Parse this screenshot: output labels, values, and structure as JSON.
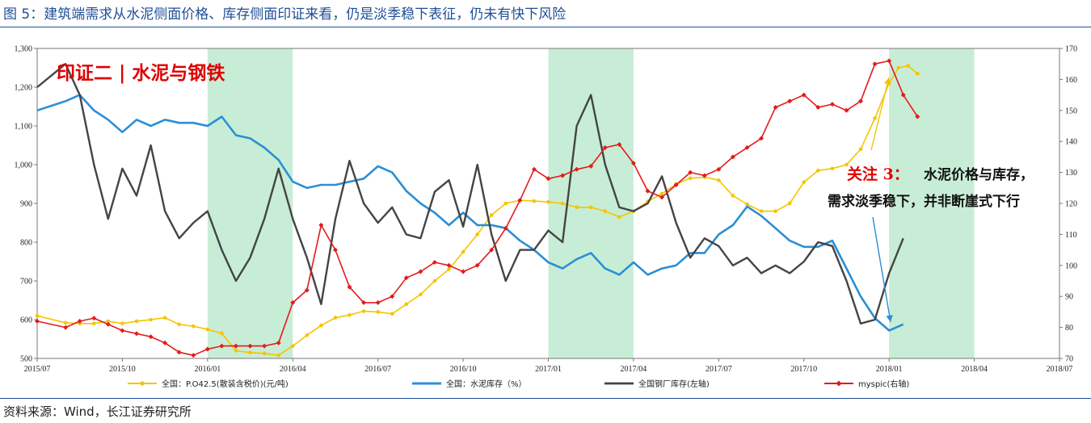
{
  "figure_title": "图 5：建筑端需求从水泥侧面价格、库存侧面印证来看，仍是淡季稳下表征，仍未有快下风险",
  "source": "资料来源：Wind，长江证券研究所",
  "annotations": {
    "top_left": "印证二 | 水泥与钢铁",
    "note_red": "关注 3：",
    "note_line1": "水泥价格与库存，",
    "note_line2": "需求淡季稳下，并非断崖式下行"
  },
  "colors": {
    "cement_price": "#f5c400",
    "cement_inventory": "#2a8fd6",
    "steel_inventory": "#444444",
    "myspic": "#e31b1b",
    "shade": "#c8edd6",
    "title": "#1f4e96"
  },
  "chart_data": {
    "type": "line",
    "x_ticks": [
      "2015/07",
      "2015/10",
      "2016/01",
      "2016/04",
      "2016/07",
      "2016/10",
      "2017/01",
      "2017/04",
      "2017/07",
      "2017/10",
      "2018/01",
      "2018/04",
      "2018/07"
    ],
    "y_left": {
      "min": 500,
      "max": 1300,
      "ticks": [
        "500",
        "600",
        "700",
        "800",
        "900",
        "1,000",
        "1,100",
        "1,200",
        "1,300"
      ]
    },
    "y_right": {
      "min": 70,
      "max": 170,
      "ticks": [
        "70",
        "80",
        "90",
        "100",
        "110",
        "120",
        "130",
        "140",
        "150",
        "160",
        "170"
      ]
    },
    "shaded_periods": [
      [
        "2016/01",
        "2016/04"
      ],
      [
        "2017/01",
        "2017/04"
      ],
      [
        "2018/01",
        "2018/04"
      ]
    ],
    "series": [
      {
        "name": "全国：P.O42.5(散装含税价)(元/吨)",
        "axis": "left",
        "marker": "dot",
        "points": [
          [
            "2015/07",
            610
          ],
          [
            "2015/08",
            592
          ],
          [
            "2015/08",
            590
          ],
          [
            "2015/09",
            590
          ],
          [
            "2015/09",
            596
          ],
          [
            "2015/10",
            590
          ],
          [
            "2015/10",
            596
          ],
          [
            "2015/11",
            600
          ],
          [
            "2015/11",
            605
          ],
          [
            "2015/12",
            588
          ],
          [
            "2015/12",
            583
          ],
          [
            "2016/01",
            575
          ],
          [
            "2016/01",
            565
          ],
          [
            "2016/02",
            520
          ],
          [
            "2016/02",
            515
          ],
          [
            "2016/03",
            513
          ],
          [
            "2016/03",
            508
          ],
          [
            "2016/04",
            532
          ],
          [
            "2016/04",
            560
          ],
          [
            "2016/05",
            585
          ],
          [
            "2016/05",
            605
          ],
          [
            "2016/06",
            612
          ],
          [
            "2016/06",
            622
          ],
          [
            "2016/07",
            620
          ],
          [
            "2016/07",
            615
          ],
          [
            "2016/08",
            640
          ],
          [
            "2016/08",
            665
          ],
          [
            "2016/09",
            700
          ],
          [
            "2016/09",
            730
          ],
          [
            "2016/10",
            775
          ],
          [
            "2016/10",
            820
          ],
          [
            "2016/11",
            870
          ],
          [
            "2016/11",
            900
          ],
          [
            "2016/12",
            908
          ],
          [
            "2016/12",
            906
          ],
          [
            "2017/01",
            904
          ],
          [
            "2017/01",
            900
          ],
          [
            "2017/02",
            890
          ],
          [
            "2017/02",
            890
          ],
          [
            "2017/03",
            880
          ],
          [
            "2017/03",
            865
          ],
          [
            "2017/04",
            880
          ],
          [
            "2017/04",
            905
          ],
          [
            "2017/05",
            925
          ],
          [
            "2017/05",
            950
          ],
          [
            "2017/06",
            965
          ],
          [
            "2017/06",
            968
          ],
          [
            "2017/07",
            960
          ],
          [
            "2017/07",
            920
          ],
          [
            "2017/08",
            898
          ],
          [
            "2017/08",
            880
          ],
          [
            "2017/09",
            880
          ],
          [
            "2017/09",
            900
          ],
          [
            "2017/10",
            955
          ],
          [
            "2017/10",
            985
          ],
          [
            "2017/11",
            990
          ],
          [
            "2017/11",
            1000
          ],
          [
            "2017/12",
            1040
          ],
          [
            "2017/12",
            1120
          ],
          [
            "2018/01",
            1210
          ],
          [
            "2018/01",
            1250
          ],
          [
            "2018/01",
            1255
          ],
          [
            "2018/02",
            1235
          ]
        ]
      },
      {
        "name": "全国：水泥库存（%）",
        "axis": "right",
        "marker": "none",
        "points": [
          [
            "2015/07",
            150
          ],
          [
            "2015/08",
            153
          ],
          [
            "2015/08",
            155
          ],
          [
            "2015/09",
            150
          ],
          [
            "2015/09",
            147
          ],
          [
            "2015/10",
            143
          ],
          [
            "2015/10",
            147
          ],
          [
            "2015/11",
            145
          ],
          [
            "2015/11",
            147
          ],
          [
            "2015/12",
            146
          ],
          [
            "2015/12",
            146
          ],
          [
            "2016/01",
            145
          ],
          [
            "2016/01",
            148
          ],
          [
            "2016/02",
            142
          ],
          [
            "2016/02",
            141
          ],
          [
            "2016/03",
            138
          ],
          [
            "2016/03",
            134
          ],
          [
            "2016/04",
            127
          ],
          [
            "2016/04",
            125
          ],
          [
            "2016/05",
            126
          ],
          [
            "2016/05",
            126
          ],
          [
            "2016/06",
            127
          ],
          [
            "2016/06",
            128
          ],
          [
            "2016/07",
            132
          ],
          [
            "2016/07",
            130
          ],
          [
            "2016/08",
            124
          ],
          [
            "2016/08",
            120
          ],
          [
            "2016/09",
            117
          ],
          [
            "2016/09",
            113
          ],
          [
            "2016/10",
            117
          ],
          [
            "2016/10",
            113
          ],
          [
            "2016/11",
            113
          ],
          [
            "2016/11",
            112
          ],
          [
            "2016/12",
            108
          ],
          [
            "2016/12",
            105
          ],
          [
            "2017/01",
            101
          ],
          [
            "2017/01",
            99
          ],
          [
            "2017/02",
            102
          ],
          [
            "2017/02",
            104
          ],
          [
            "2017/03",
            99
          ],
          [
            "2017/03",
            97
          ],
          [
            "2017/04",
            101
          ],
          [
            "2017/04",
            97
          ],
          [
            "2017/05",
            99
          ],
          [
            "2017/05",
            100
          ],
          [
            "2017/06",
            104
          ],
          [
            "2017/06",
            104
          ],
          [
            "2017/07",
            110
          ],
          [
            "2017/07",
            113
          ],
          [
            "2017/08",
            119
          ],
          [
            "2017/08",
            116
          ],
          [
            "2017/09",
            112
          ],
          [
            "2017/09",
            108
          ],
          [
            "2017/10",
            106
          ],
          [
            "2017/10",
            106
          ],
          [
            "2017/11",
            108
          ],
          [
            "2017/11",
            99
          ],
          [
            "2017/12",
            90
          ],
          [
            "2017/12",
            83
          ],
          [
            "2018/01",
            79
          ],
          [
            "2018/01",
            81
          ]
        ]
      },
      {
        "name": "全国钢厂库存(左轴)",
        "axis": "left",
        "marker": "none",
        "points": [
          [
            "2015/07",
            1200
          ],
          [
            "2015/08",
            1260
          ],
          [
            "2015/08",
            1180
          ],
          [
            "2015/09",
            1000
          ],
          [
            "2015/09",
            860
          ],
          [
            "2015/10",
            990
          ],
          [
            "2015/10",
            920
          ],
          [
            "2015/11",
            1050
          ],
          [
            "2015/11",
            880
          ],
          [
            "2015/12",
            810
          ],
          [
            "2015/12",
            850
          ],
          [
            "2016/01",
            880
          ],
          [
            "2016/01",
            780
          ],
          [
            "2016/02",
            700
          ],
          [
            "2016/02",
            760
          ],
          [
            "2016/03",
            860
          ],
          [
            "2016/03",
            990
          ],
          [
            "2016/04",
            860
          ],
          [
            "2016/04",
            760
          ],
          [
            "2016/05",
            640
          ],
          [
            "2016/05",
            860
          ],
          [
            "2016/06",
            1010
          ],
          [
            "2016/06",
            900
          ],
          [
            "2016/07",
            850
          ],
          [
            "2016/07",
            890
          ],
          [
            "2016/08",
            820
          ],
          [
            "2016/08",
            810
          ],
          [
            "2016/09",
            930
          ],
          [
            "2016/09",
            960
          ],
          [
            "2016/10",
            840
          ],
          [
            "2016/10",
            1000
          ],
          [
            "2016/11",
            820
          ],
          [
            "2016/11",
            700
          ],
          [
            "2016/12",
            780
          ],
          [
            "2016/12",
            780
          ],
          [
            "2017/01",
            830
          ],
          [
            "2017/01",
            800
          ],
          [
            "2017/02",
            1100
          ],
          [
            "2017/02",
            1180
          ],
          [
            "2017/03",
            1000
          ],
          [
            "2017/03",
            890
          ],
          [
            "2017/04",
            880
          ],
          [
            "2017/04",
            900
          ],
          [
            "2017/05",
            970
          ],
          [
            "2017/05",
            850
          ],
          [
            "2017/06",
            760
          ],
          [
            "2017/06",
            810
          ],
          [
            "2017/07",
            790
          ],
          [
            "2017/07",
            740
          ],
          [
            "2017/08",
            760
          ],
          [
            "2017/08",
            720
          ],
          [
            "2017/09",
            740
          ],
          [
            "2017/09",
            720
          ],
          [
            "2017/10",
            750
          ],
          [
            "2017/10",
            800
          ],
          [
            "2017/11",
            790
          ],
          [
            "2017/11",
            700
          ],
          [
            "2017/12",
            590
          ],
          [
            "2017/12",
            600
          ],
          [
            "2018/01",
            720
          ],
          [
            "2018/01",
            810
          ]
        ]
      },
      {
        "name": "myspic(右轴)",
        "axis": "right",
        "marker": "diamond",
        "points": [
          [
            "2015/07",
            82
          ],
          [
            "2015/08",
            80
          ],
          [
            "2015/08",
            82
          ],
          [
            "2015/09",
            83
          ],
          [
            "2015/09",
            81
          ],
          [
            "2015/10",
            79
          ],
          [
            "2015/10",
            78
          ],
          [
            "2015/11",
            77
          ],
          [
            "2015/11",
            75
          ],
          [
            "2015/12",
            72
          ],
          [
            "2015/12",
            71
          ],
          [
            "2016/01",
            73
          ],
          [
            "2016/01",
            74
          ],
          [
            "2016/02",
            74
          ],
          [
            "2016/02",
            74
          ],
          [
            "2016/03",
            74
          ],
          [
            "2016/03",
            75
          ],
          [
            "2016/04",
            88
          ],
          [
            "2016/04",
            92
          ],
          [
            "2016/05",
            113
          ],
          [
            "2016/05",
            105
          ],
          [
            "2016/06",
            93
          ],
          [
            "2016/06",
            88
          ],
          [
            "2016/07",
            88
          ],
          [
            "2016/07",
            90
          ],
          [
            "2016/08",
            96
          ],
          [
            "2016/08",
            98
          ],
          [
            "2016/09",
            101
          ],
          [
            "2016/09",
            100
          ],
          [
            "2016/10",
            98
          ],
          [
            "2016/10",
            100
          ],
          [
            "2016/11",
            105
          ],
          [
            "2016/11",
            112
          ],
          [
            "2016/12",
            121
          ],
          [
            "2016/12",
            131
          ],
          [
            "2017/01",
            128
          ],
          [
            "2017/01",
            129
          ],
          [
            "2017/02",
            131
          ],
          [
            "2017/02",
            132
          ],
          [
            "2017/03",
            138
          ],
          [
            "2017/03",
            139
          ],
          [
            "2017/04",
            133
          ],
          [
            "2017/04",
            124
          ],
          [
            "2017/05",
            122
          ],
          [
            "2017/05",
            126
          ],
          [
            "2017/06",
            130
          ],
          [
            "2017/06",
            129
          ],
          [
            "2017/07",
            131
          ],
          [
            "2017/07",
            135
          ],
          [
            "2017/08",
            138
          ],
          [
            "2017/08",
            141
          ],
          [
            "2017/09",
            151
          ],
          [
            "2017/09",
            153
          ],
          [
            "2017/10",
            155
          ],
          [
            "2017/10",
            151
          ],
          [
            "2017/11",
            152
          ],
          [
            "2017/11",
            150
          ],
          [
            "2017/12",
            153
          ],
          [
            "2017/12",
            165
          ],
          [
            "2018/01",
            166
          ],
          [
            "2018/01",
            155
          ],
          [
            "2018/02",
            148
          ]
        ]
      }
    ]
  }
}
